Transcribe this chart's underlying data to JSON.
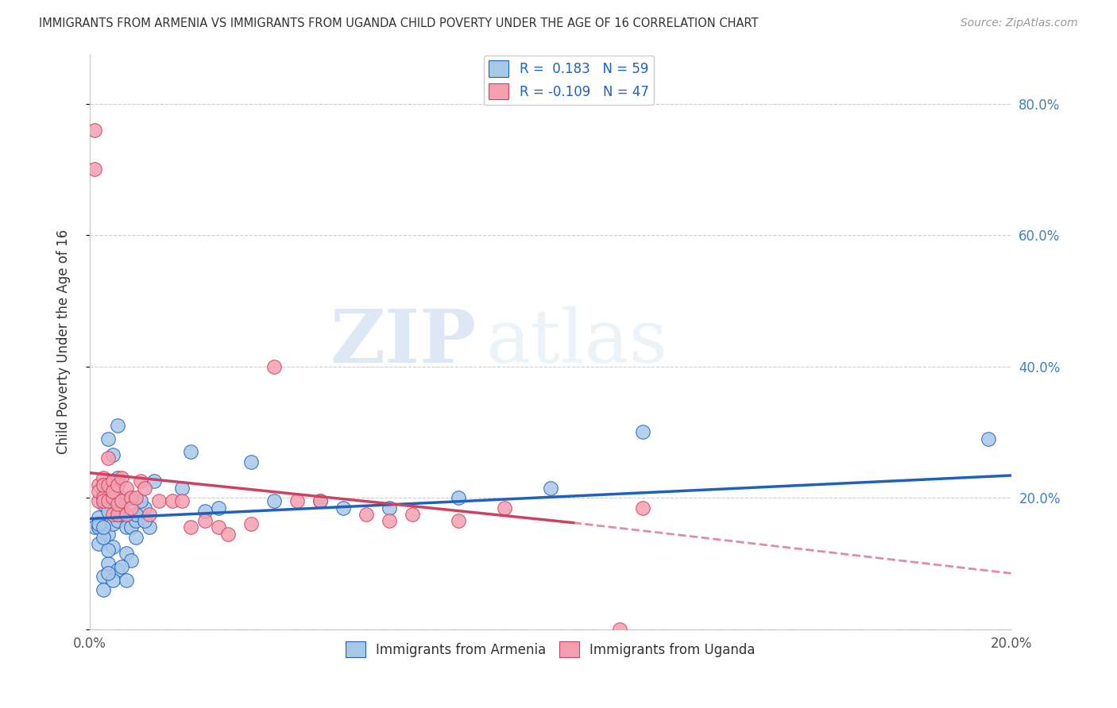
{
  "title": "IMMIGRANTS FROM ARMENIA VS IMMIGRANTS FROM UGANDA CHILD POVERTY UNDER THE AGE OF 16 CORRELATION CHART",
  "source": "Source: ZipAtlas.com",
  "ylabel": "Child Poverty Under the Age of 16",
  "xlabel_armenia": "Immigrants from Armenia",
  "xlabel_uganda": "Immigrants from Uganda",
  "xlim": [
    0,
    0.2
  ],
  "ylim": [
    0,
    0.875
  ],
  "yticks": [
    0.0,
    0.2,
    0.4,
    0.6,
    0.8
  ],
  "ytick_labels": [
    "",
    "20.0%",
    "40.0%",
    "60.0%",
    "80.0%"
  ],
  "xticks": [
    0.0,
    0.05,
    0.1,
    0.15,
    0.2
  ],
  "xtick_labels": [
    "0.0%",
    "",
    "",
    "",
    "20.0%"
  ],
  "R_armenia": 0.183,
  "N_armenia": 59,
  "R_uganda": -0.109,
  "N_uganda": 47,
  "color_armenia": "#a8c8e8",
  "color_uganda": "#f4a0b0",
  "trendline_armenia_color": "#2060c0",
  "trendline_uganda_color": "#d04060",
  "watermark_zip": "ZIP",
  "watermark_atlas": "atlas",
  "armenia_x": [
    0.002,
    0.003,
    0.001,
    0.004,
    0.003,
    0.002,
    0.004,
    0.005,
    0.003,
    0.002,
    0.004,
    0.003,
    0.005,
    0.002,
    0.004,
    0.006,
    0.003,
    0.005,
    0.004,
    0.003,
    0.006,
    0.005,
    0.004,
    0.006,
    0.007,
    0.005,
    0.004,
    0.003,
    0.006,
    0.007,
    0.008,
    0.006,
    0.007,
    0.009,
    0.01,
    0.008,
    0.009,
    0.007,
    0.008,
    0.01,
    0.012,
    0.01,
    0.011,
    0.013,
    0.012,
    0.014,
    0.02,
    0.025,
    0.022,
    0.028,
    0.035,
    0.04,
    0.05,
    0.055,
    0.065,
    0.08,
    0.1,
    0.12,
    0.195
  ],
  "armenia_y": [
    0.17,
    0.19,
    0.155,
    0.18,
    0.22,
    0.155,
    0.145,
    0.16,
    0.21,
    0.16,
    0.1,
    0.08,
    0.125,
    0.13,
    0.12,
    0.09,
    0.06,
    0.075,
    0.085,
    0.14,
    0.31,
    0.265,
    0.29,
    0.165,
    0.175,
    0.225,
    0.2,
    0.155,
    0.23,
    0.19,
    0.155,
    0.175,
    0.2,
    0.155,
    0.165,
    0.115,
    0.105,
    0.095,
    0.075,
    0.14,
    0.185,
    0.175,
    0.195,
    0.155,
    0.165,
    0.225,
    0.215,
    0.18,
    0.27,
    0.185,
    0.255,
    0.195,
    0.195,
    0.185,
    0.185,
    0.2,
    0.215,
    0.3,
    0.29
  ],
  "uganda_x": [
    0.001,
    0.001,
    0.002,
    0.002,
    0.002,
    0.003,
    0.003,
    0.003,
    0.003,
    0.004,
    0.004,
    0.004,
    0.005,
    0.005,
    0.005,
    0.005,
    0.006,
    0.006,
    0.006,
    0.007,
    0.007,
    0.008,
    0.008,
    0.009,
    0.009,
    0.01,
    0.011,
    0.012,
    0.013,
    0.015,
    0.018,
    0.02,
    0.022,
    0.025,
    0.028,
    0.03,
    0.035,
    0.04,
    0.045,
    0.05,
    0.06,
    0.065,
    0.07,
    0.08,
    0.09,
    0.115,
    0.12
  ],
  "uganda_y": [
    0.7,
    0.76,
    0.22,
    0.195,
    0.21,
    0.23,
    0.2,
    0.22,
    0.195,
    0.22,
    0.26,
    0.195,
    0.225,
    0.2,
    0.21,
    0.175,
    0.22,
    0.175,
    0.19,
    0.23,
    0.195,
    0.175,
    0.215,
    0.2,
    0.185,
    0.2,
    0.225,
    0.215,
    0.175,
    0.195,
    0.195,
    0.195,
    0.155,
    0.165,
    0.155,
    0.145,
    0.16,
    0.4,
    0.195,
    0.195,
    0.175,
    0.165,
    0.175,
    0.165,
    0.185,
    0.0,
    0.185
  ],
  "trendline_armenia_x0": 0.0,
  "trendline_armenia_y0": 0.168,
  "trendline_armenia_x1": 0.2,
  "trendline_armenia_y1": 0.234,
  "trendline_uganda_solid_x0": 0.0,
  "trendline_uganda_solid_y0": 0.238,
  "trendline_uganda_solid_x1": 0.105,
  "trendline_uganda_solid_y1": 0.162,
  "trendline_uganda_dash_x0": 0.105,
  "trendline_uganda_dash_y0": 0.162,
  "trendline_uganda_dash_x1": 0.2,
  "trendline_uganda_dash_y1": 0.085
}
